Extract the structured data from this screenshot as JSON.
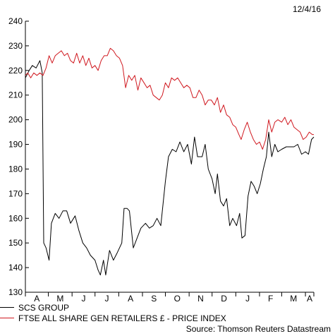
{
  "header": {
    "date": "12/4/16"
  },
  "source": "Source: Thomson Reuters Datastream",
  "colors": {
    "scs": "#000000",
    "ftse": "#d0181f",
    "axis": "#000000"
  },
  "chart_data": {
    "type": "line",
    "title": "",
    "xlabel": "",
    "ylabel": "",
    "ylim": [
      130,
      240
    ],
    "yticks": [
      130,
      140,
      150,
      160,
      170,
      180,
      190,
      200,
      210,
      220,
      230,
      240
    ],
    "x_range": [
      "2015-04-01",
      "2016-04-12"
    ],
    "x_tick_boundaries": [
      "2015-04-01",
      "2015-05-01",
      "2015-06-01",
      "2015-07-01",
      "2015-08-01",
      "2015-09-01",
      "2015-10-01",
      "2015-11-01",
      "2015-12-01",
      "2016-01-01",
      "2016-02-01",
      "2016-03-01",
      "2016-04-01",
      "2016-04-12"
    ],
    "x_tick_labels": [
      "A",
      "M",
      "J",
      "J",
      "A",
      "S",
      "O",
      "N",
      "D",
      "J",
      "F",
      "M",
      "A"
    ],
    "grid": false,
    "legend_position": "bottom-left",
    "series": [
      {
        "name": "SCS GROUP",
        "color_key": "scs",
        "points": [
          [
            "2015-04-01",
            217
          ],
          [
            "2015-04-06",
            220
          ],
          [
            "2015-04-10",
            222
          ],
          [
            "2015-04-15",
            221
          ],
          [
            "2015-04-20",
            224
          ],
          [
            "2015-04-23",
            219
          ],
          [
            "2015-04-25",
            150
          ],
          [
            "2015-04-28",
            148
          ],
          [
            "2015-05-02",
            143
          ],
          [
            "2015-05-05",
            158
          ],
          [
            "2015-05-10",
            162
          ],
          [
            "2015-05-15",
            160
          ],
          [
            "2015-05-20",
            163
          ],
          [
            "2015-05-25",
            163
          ],
          [
            "2015-05-30",
            158
          ],
          [
            "2015-06-05",
            161
          ],
          [
            "2015-06-10",
            155
          ],
          [
            "2015-06-15",
            150
          ],
          [
            "2015-06-20",
            148
          ],
          [
            "2015-06-25",
            145
          ],
          [
            "2015-07-01",
            143
          ],
          [
            "2015-07-05",
            139
          ],
          [
            "2015-07-08",
            137
          ],
          [
            "2015-07-12",
            143
          ],
          [
            "2015-07-15",
            137
          ],
          [
            "2015-07-20",
            147
          ],
          [
            "2015-07-25",
            143
          ],
          [
            "2015-07-30",
            146
          ],
          [
            "2015-08-05",
            150
          ],
          [
            "2015-08-08",
            164
          ],
          [
            "2015-08-12",
            164
          ],
          [
            "2015-08-15",
            163
          ],
          [
            "2015-08-20",
            148
          ],
          [
            "2015-08-25",
            152
          ],
          [
            "2015-08-30",
            156
          ],
          [
            "2015-09-05",
            158
          ],
          [
            "2015-09-10",
            156
          ],
          [
            "2015-09-15",
            157
          ],
          [
            "2015-09-20",
            160
          ],
          [
            "2015-09-25",
            157
          ],
          [
            "2015-10-01",
            175
          ],
          [
            "2015-10-05",
            185
          ],
          [
            "2015-10-10",
            188
          ],
          [
            "2015-10-15",
            187
          ],
          [
            "2015-10-20",
            191
          ],
          [
            "2015-10-25",
            187
          ],
          [
            "2015-10-30",
            190
          ],
          [
            "2015-11-04",
            182
          ],
          [
            "2015-11-08",
            193
          ],
          [
            "2015-11-12",
            185
          ],
          [
            "2015-11-18",
            185
          ],
          [
            "2015-11-22",
            190
          ],
          [
            "2015-11-26",
            180
          ],
          [
            "2015-12-01",
            176
          ],
          [
            "2015-12-05",
            170
          ],
          [
            "2015-12-08",
            178
          ],
          [
            "2015-12-12",
            167
          ],
          [
            "2015-12-16",
            165
          ],
          [
            "2015-12-20",
            168
          ],
          [
            "2015-12-24",
            157
          ],
          [
            "2015-12-28",
            160
          ],
          [
            "2016-01-02",
            157
          ],
          [
            "2016-01-06",
            162
          ],
          [
            "2016-01-09",
            152
          ],
          [
            "2016-01-13",
            153
          ],
          [
            "2016-01-17",
            169
          ],
          [
            "2016-01-21",
            175
          ],
          [
            "2016-01-25",
            173
          ],
          [
            "2016-01-29",
            170
          ],
          [
            "2016-02-02",
            174
          ],
          [
            "2016-02-06",
            180
          ],
          [
            "2016-02-10",
            185
          ],
          [
            "2016-02-13",
            195
          ],
          [
            "2016-02-17",
            185
          ],
          [
            "2016-02-21",
            190
          ],
          [
            "2016-02-25",
            187
          ],
          [
            "2016-03-01",
            188
          ],
          [
            "2016-03-07",
            189
          ],
          [
            "2016-03-12",
            189
          ],
          [
            "2016-03-17",
            189
          ],
          [
            "2016-03-22",
            190
          ],
          [
            "2016-03-27",
            186
          ],
          [
            "2016-04-01",
            187
          ],
          [
            "2016-04-05",
            186
          ],
          [
            "2016-04-09",
            192
          ],
          [
            "2016-04-12",
            193
          ]
        ]
      },
      {
        "name": "FTSE ALL SHARE GEN RETAILERS £ - PRICE INDEX",
        "color_key": "ftse",
        "points": [
          [
            "2015-04-01",
            218
          ],
          [
            "2015-04-04",
            219
          ],
          [
            "2015-04-08",
            217
          ],
          [
            "2015-04-12",
            219
          ],
          [
            "2015-04-16",
            218
          ],
          [
            "2015-04-20",
            219
          ],
          [
            "2015-04-24",
            218
          ],
          [
            "2015-04-28",
            221
          ],
          [
            "2015-05-02",
            226
          ],
          [
            "2015-05-06",
            223
          ],
          [
            "2015-05-10",
            226
          ],
          [
            "2015-05-14",
            227
          ],
          [
            "2015-05-18",
            228
          ],
          [
            "2015-05-22",
            226
          ],
          [
            "2015-05-26",
            227
          ],
          [
            "2015-05-30",
            224
          ],
          [
            "2015-06-03",
            223
          ],
          [
            "2015-06-07",
            227
          ],
          [
            "2015-06-11",
            223
          ],
          [
            "2015-06-15",
            226
          ],
          [
            "2015-06-19",
            222
          ],
          [
            "2015-06-23",
            225
          ],
          [
            "2015-06-27",
            221
          ],
          [
            "2015-07-01",
            222
          ],
          [
            "2015-07-05",
            220
          ],
          [
            "2015-07-09",
            224
          ],
          [
            "2015-07-13",
            226
          ],
          [
            "2015-07-17",
            226
          ],
          [
            "2015-07-21",
            229
          ],
          [
            "2015-07-25",
            228
          ],
          [
            "2015-07-29",
            226
          ],
          [
            "2015-08-02",
            225
          ],
          [
            "2015-08-06",
            222
          ],
          [
            "2015-08-10",
            213
          ],
          [
            "2015-08-14",
            218
          ],
          [
            "2015-08-18",
            216
          ],
          [
            "2015-08-22",
            218
          ],
          [
            "2015-08-26",
            212
          ],
          [
            "2015-08-30",
            217
          ],
          [
            "2015-09-03",
            215
          ],
          [
            "2015-09-07",
            213
          ],
          [
            "2015-09-11",
            214
          ],
          [
            "2015-09-15",
            210
          ],
          [
            "2015-09-19",
            209
          ],
          [
            "2015-09-23",
            208
          ],
          [
            "2015-09-27",
            210
          ],
          [
            "2015-10-01",
            215
          ],
          [
            "2015-10-05",
            213
          ],
          [
            "2015-10-09",
            217
          ],
          [
            "2015-10-13",
            216
          ],
          [
            "2015-10-17",
            217
          ],
          [
            "2015-10-21",
            215
          ],
          [
            "2015-10-25",
            213
          ],
          [
            "2015-10-29",
            214
          ],
          [
            "2015-11-02",
            213
          ],
          [
            "2015-11-06",
            209
          ],
          [
            "2015-11-10",
            209
          ],
          [
            "2015-11-14",
            212
          ],
          [
            "2015-11-18",
            210
          ],
          [
            "2015-11-22",
            206
          ],
          [
            "2015-11-26",
            208
          ],
          [
            "2015-11-30",
            208
          ],
          [
            "2015-12-04",
            206
          ],
          [
            "2015-12-08",
            209
          ],
          [
            "2015-12-12",
            203
          ],
          [
            "2015-12-16",
            206
          ],
          [
            "2015-12-20",
            202
          ],
          [
            "2015-12-24",
            201
          ],
          [
            "2015-12-28",
            198
          ],
          [
            "2016-01-01",
            197
          ],
          [
            "2016-01-05",
            194
          ],
          [
            "2016-01-08",
            192
          ],
          [
            "2016-01-12",
            196
          ],
          [
            "2016-01-16",
            199
          ],
          [
            "2016-01-20",
            195
          ],
          [
            "2016-01-24",
            192
          ],
          [
            "2016-01-28",
            190
          ],
          [
            "2016-02-01",
            191
          ],
          [
            "2016-02-05",
            188
          ],
          [
            "2016-02-09",
            192
          ],
          [
            "2016-02-13",
            200
          ],
          [
            "2016-02-17",
            195
          ],
          [
            "2016-02-21",
            199
          ],
          [
            "2016-02-25",
            200
          ],
          [
            "2016-03-01",
            199
          ],
          [
            "2016-03-05",
            201
          ],
          [
            "2016-03-09",
            198
          ],
          [
            "2016-03-13",
            200
          ],
          [
            "2016-03-17",
            197
          ],
          [
            "2016-03-21",
            196
          ],
          [
            "2016-03-25",
            195
          ],
          [
            "2016-03-29",
            192
          ],
          [
            "2016-04-02",
            193
          ],
          [
            "2016-04-06",
            195
          ],
          [
            "2016-04-10",
            194
          ],
          [
            "2016-04-12",
            194
          ]
        ]
      }
    ]
  }
}
